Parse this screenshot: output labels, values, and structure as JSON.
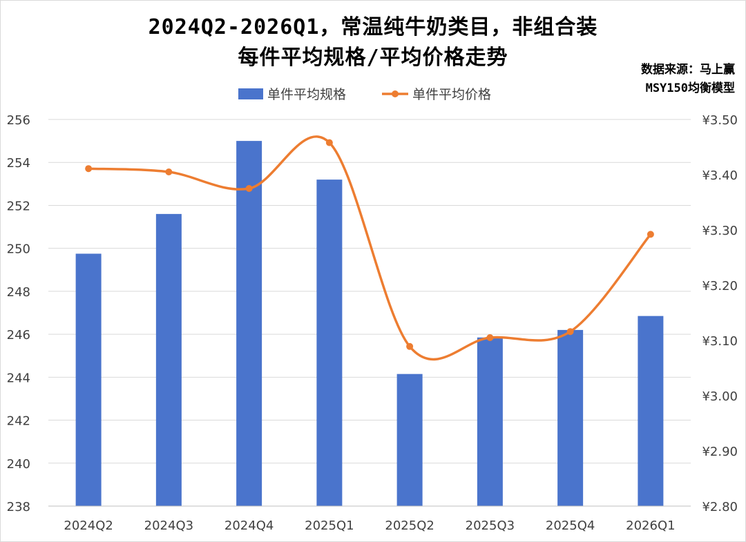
{
  "title_line1": "2024Q2-2026Q1，常温纯牛奶类目，非组合装",
  "title_line2": "每件平均规格/平均价格走势",
  "source_line1": "数据来源：马上赢",
  "source_line2": "MSY150均衡模型",
  "colors": {
    "bar": "#4a74cc",
    "line": "#ed7d31",
    "grid": "#d9d9d9",
    "text": "#404040"
  },
  "chart_data": {
    "type": "bar",
    "categories": [
      "2024Q2",
      "2024Q3",
      "2024Q4",
      "2025Q1",
      "2025Q2",
      "2025Q3",
      "2025Q4",
      "2026Q1"
    ],
    "series": [
      {
        "name": "单件平均规格",
        "type": "bar",
        "axis": "left",
        "values": [
          249.75,
          251.6,
          255.0,
          253.2,
          244.15,
          245.85,
          246.2,
          246.85
        ]
      },
      {
        "name": "单件平均价格",
        "type": "line",
        "axis": "right",
        "smooth": true,
        "values": [
          3.411,
          3.405,
          3.375,
          3.458,
          3.089,
          3.105,
          3.116,
          3.292
        ]
      }
    ],
    "y_left": {
      "min": 238,
      "max": 256,
      "step": 2,
      "ticks": [
        "238",
        "240",
        "242",
        "244",
        "246",
        "248",
        "250",
        "252",
        "254",
        "256"
      ]
    },
    "y_right": {
      "min": 2.8,
      "max": 3.5,
      "step": 0.1,
      "ticks": [
        "¥2.80",
        "¥2.90",
        "¥3.00",
        "¥3.10",
        "¥3.20",
        "¥3.30",
        "¥3.40",
        "¥3.50"
      ]
    },
    "grid": true,
    "legend": "top-center"
  }
}
